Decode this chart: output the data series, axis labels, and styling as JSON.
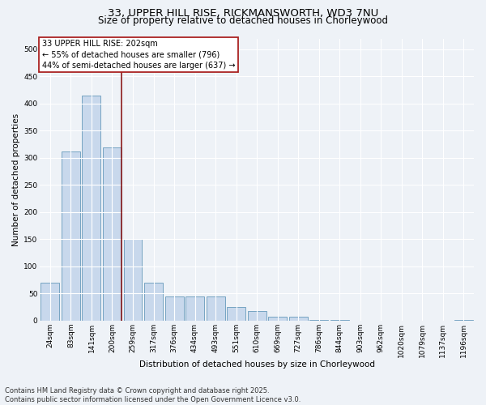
{
  "title_line1": "33, UPPER HILL RISE, RICKMANSWORTH, WD3 7NU",
  "title_line2": "Size of property relative to detached houses in Chorleywood",
  "xlabel": "Distribution of detached houses by size in Chorleywood",
  "ylabel": "Number of detached properties",
  "footer": "Contains HM Land Registry data © Crown copyright and database right 2025.\nContains public sector information licensed under the Open Government Licence v3.0.",
  "bar_labels": [
    "24sqm",
    "83sqm",
    "141sqm",
    "200sqm",
    "259sqm",
    "317sqm",
    "376sqm",
    "434sqm",
    "493sqm",
    "551sqm",
    "610sqm",
    "669sqm",
    "727sqm",
    "786sqm",
    "844sqm",
    "903sqm",
    "962sqm",
    "1020sqm",
    "1079sqm",
    "1137sqm",
    "1196sqm"
  ],
  "bar_values": [
    70,
    312,
    415,
    320,
    150,
    70,
    45,
    45,
    45,
    25,
    18,
    7,
    7,
    2,
    2,
    0,
    0,
    0,
    0,
    0,
    1
  ],
  "bar_color": "#c8d8ec",
  "bar_edge_color": "#6699bb",
  "vline_color": "#8b1a1a",
  "vline_x_idx": 3,
  "annotation_text": "33 UPPER HILL RISE: 202sqm\n← 55% of detached houses are smaller (796)\n44% of semi-detached houses are larger (637) →",
  "annotation_box_color": "#ffffff",
  "annotation_box_edge": "#aa2222",
  "ylim": [
    0,
    520
  ],
  "yticks": [
    0,
    50,
    100,
    150,
    200,
    250,
    300,
    350,
    400,
    450,
    500
  ],
  "background_color": "#eef2f7",
  "grid_color": "#ffffff",
  "title_fontsize": 9.5,
  "subtitle_fontsize": 8.5,
  "axis_label_fontsize": 7.5,
  "tick_fontsize": 6.5,
  "footer_fontsize": 6,
  "annotation_fontsize": 7
}
